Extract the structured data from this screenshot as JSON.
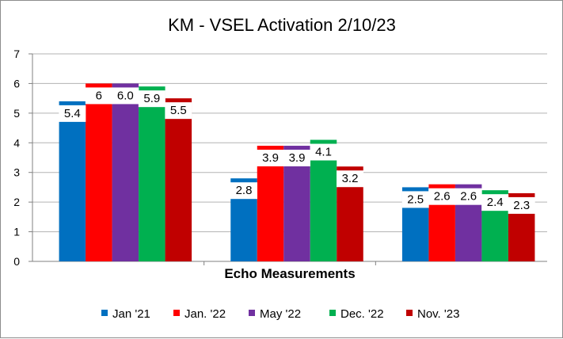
{
  "chart_data": {
    "type": "bar",
    "title": "KM - VSEL Activation 2/10/23",
    "xlabel": "Echo Measurements",
    "ylabel": "",
    "ylim": [
      0,
      7
    ],
    "yticks": [
      0,
      1,
      2,
      3,
      4,
      5,
      6,
      7
    ],
    "grid": true,
    "legend_position": "bottom",
    "categories": [
      "",
      "",
      ""
    ],
    "series": [
      {
        "name": "Jan '21",
        "color": "#0070c0",
        "values": [
          5.4,
          2.8,
          2.5
        ],
        "labels": [
          "5.4",
          "2.8",
          "2.5"
        ]
      },
      {
        "name": "Jan. '22",
        "color": "#ff0000",
        "values": [
          6.0,
          3.9,
          2.6
        ],
        "labels": [
          "6",
          "3.9",
          "2.6"
        ]
      },
      {
        "name": "May '22",
        "color": "#7030a0",
        "values": [
          6.0,
          3.9,
          2.6
        ],
        "labels": [
          "6.0",
          "3.9",
          "2.6"
        ]
      },
      {
        "name": "Dec. '22",
        "color": "#00b050",
        "values": [
          5.9,
          4.1,
          2.4
        ],
        "labels": [
          "5.9",
          "4.1",
          "2.4"
        ]
      },
      {
        "name": "Nov. '23",
        "color": "#c00000",
        "values": [
          5.5,
          3.2,
          2.3
        ],
        "labels": [
          "5.5",
          "3.2",
          "2.3"
        ]
      }
    ]
  }
}
